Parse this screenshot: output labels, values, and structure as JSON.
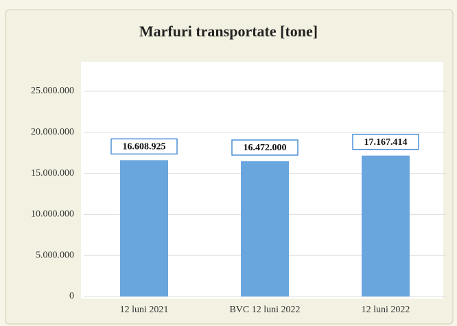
{
  "chart_data": {
    "type": "bar",
    "title": "Marfuri transportate [tone]",
    "categories": [
      "12 luni 2021",
      "BVC 12 luni 2022",
      "12 luni 2022"
    ],
    "values": [
      16608925,
      16472000,
      17167414
    ],
    "value_labels": [
      "16.608.925",
      "16.472.000",
      "17.167.414"
    ],
    "color": "#6aa6de",
    "ylim": [
      0,
      25000000
    ],
    "yticks": [
      0,
      {
        "value": 5000000,
        "label": "5.000.000"
      },
      {
        "value": 10000000,
        "label": "10.000.000"
      },
      {
        "value": 15000000,
        "label": "15.000.000"
      },
      {
        "value": 20000000,
        "label": "20.000.000"
      },
      {
        "value": 25000000,
        "label": "25.000.000"
      }
    ],
    "grid": true
  }
}
